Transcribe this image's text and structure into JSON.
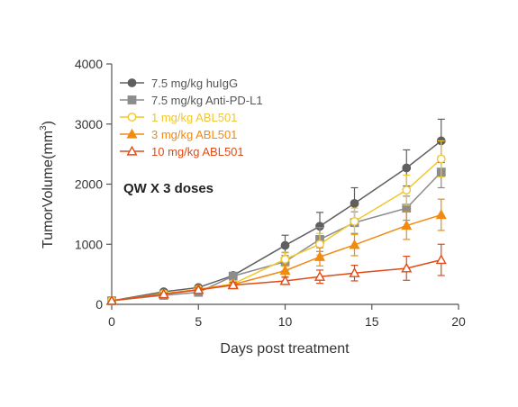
{
  "chart_data": {
    "type": "line",
    "xlabel": "Days post treatment",
    "ylabel_main": "TumorVolume(mm",
    "ylabel_sup": "3",
    "ylabel_close": ")",
    "annotation": "QW X 3 doses",
    "xlim": [
      0,
      20
    ],
    "ylim": [
      0,
      4000
    ],
    "x_ticks": [
      "0",
      "5",
      "10",
      "15",
      "20"
    ],
    "y_ticks": [
      "0",
      "1000",
      "2000",
      "3000",
      "4000"
    ],
    "legend_placement": "top-left",
    "grid": false,
    "series": [
      {
        "name": "7.5 mg/kg huIgG",
        "color": "#5f5f5f",
        "marker": "circle",
        "filled": true,
        "x": [
          0,
          3,
          5,
          7,
          10,
          12,
          14,
          17,
          19
        ],
        "y": [
          60,
          210,
          280,
          480,
          980,
          1300,
          1680,
          2270,
          2720
        ],
        "err": [
          0,
          20,
          30,
          50,
          170,
          230,
          260,
          300,
          360
        ]
      },
      {
        "name": "7.5 mg/kg Anti-PD-L1",
        "color": "#8c8c8c",
        "marker": "square",
        "filled": true,
        "x": [
          0,
          3,
          5,
          7,
          10,
          12,
          14,
          17,
          19
        ],
        "y": [
          60,
          150,
          200,
          470,
          710,
          1080,
          1360,
          1600,
          2200
        ],
        "err": [
          0,
          20,
          30,
          50,
          150,
          200,
          180,
          200,
          260
        ]
      },
      {
        "name": "1 mg/kg ABL501",
        "color": "#f2c62d",
        "marker": "circle",
        "filled": false,
        "x": [
          0,
          3,
          5,
          7,
          10,
          12,
          14,
          17,
          19
        ],
        "y": [
          60,
          180,
          250,
          340,
          750,
          1000,
          1380,
          1900,
          2420
        ],
        "err": [
          0,
          20,
          30,
          40,
          120,
          180,
          220,
          250,
          300
        ]
      },
      {
        "name": "3 mg/kg ABL501",
        "color": "#f08a10",
        "marker": "triangle",
        "filled": true,
        "x": [
          0,
          3,
          5,
          7,
          10,
          12,
          14,
          17,
          19
        ],
        "y": [
          60,
          170,
          250,
          330,
          560,
          790,
          990,
          1310,
          1490
        ],
        "err": [
          0,
          20,
          30,
          40,
          100,
          150,
          180,
          230,
          260
        ]
      },
      {
        "name": "10 mg/kg ABL501",
        "color": "#e14b17",
        "marker": "triangle",
        "filled": false,
        "x": [
          0,
          3,
          5,
          7,
          10,
          12,
          14,
          17,
          19
        ],
        "y": [
          60,
          170,
          240,
          320,
          390,
          460,
          520,
          600,
          740
        ],
        "err": [
          0,
          20,
          30,
          40,
          60,
          110,
          130,
          200,
          260
        ]
      }
    ]
  }
}
